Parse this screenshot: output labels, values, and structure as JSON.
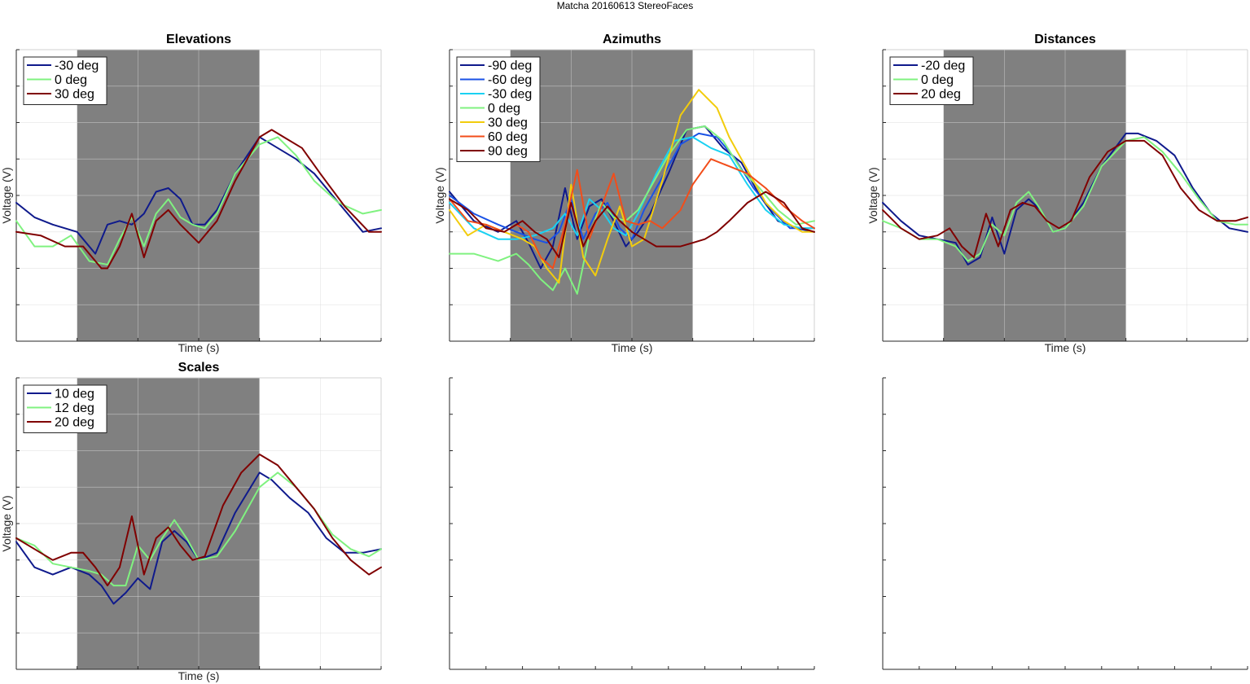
{
  "figure": {
    "title": "Matcha 20160613 StereoFaces"
  },
  "chart_data": [
    {
      "type": "line",
      "title": "Elevations",
      "xlabel": "Time (s)",
      "ylabel": "Voltage (V)",
      "grid": true,
      "legend_position": "top-left",
      "shaded_region": [
        1,
        4
      ],
      "xlim": [
        0,
        6
      ],
      "ylim": [
        0,
        8
      ],
      "series": [
        {
          "name": "-30 deg",
          "color": "#0f1a8c",
          "x": [
            0,
            0.3,
            0.6,
            1.0,
            1.3,
            1.5,
            1.7,
            1.9,
            2.1,
            2.3,
            2.5,
            2.7,
            2.9,
            3.1,
            3.3,
            3.6,
            4.0,
            4.2,
            4.6,
            4.9,
            5.3,
            5.7,
            6.0
          ],
          "y": [
            3.8,
            3.4,
            3.2,
            3.0,
            2.4,
            3.2,
            3.3,
            3.2,
            3.5,
            4.1,
            4.2,
            3.9,
            3.2,
            3.2,
            3.6,
            4.6,
            5.6,
            5.4,
            5.0,
            4.6,
            3.8,
            3.0,
            3.1
          ]
        },
        {
          "name": "0 deg",
          "color": "#80f280",
          "x": [
            0,
            0.3,
            0.6,
            0.9,
            1.2,
            1.5,
            1.7,
            1.9,
            2.1,
            2.3,
            2.5,
            2.7,
            2.9,
            3.1,
            3.3,
            3.6,
            4.0,
            4.3,
            4.6,
            4.9,
            5.3,
            5.7,
            6.0
          ],
          "y": [
            3.3,
            2.6,
            2.6,
            2.9,
            2.2,
            2.1,
            2.8,
            3.4,
            2.6,
            3.5,
            3.9,
            3.4,
            3.2,
            3.1,
            3.5,
            4.6,
            5.4,
            5.6,
            5.1,
            4.4,
            3.8,
            3.5,
            3.6
          ]
        },
        {
          "name": "30 deg",
          "color": "#800000",
          "x": [
            0,
            0.4,
            0.8,
            1.1,
            1.4,
            1.5,
            1.7,
            1.9,
            2.1,
            2.3,
            2.5,
            2.7,
            3.0,
            3.3,
            3.6,
            4.0,
            4.2,
            4.4,
            4.7,
            5.0,
            5.4,
            5.8,
            6.0
          ],
          "y": [
            3.0,
            2.9,
            2.6,
            2.6,
            2.0,
            2.0,
            2.6,
            3.5,
            2.3,
            3.3,
            3.6,
            3.2,
            2.7,
            3.3,
            4.4,
            5.6,
            5.8,
            5.6,
            5.3,
            4.6,
            3.7,
            3.0,
            3.0
          ]
        }
      ]
    },
    {
      "type": "line",
      "title": "Azimuths",
      "xlabel": "Time (s)",
      "ylabel": "Voltage (V)",
      "grid": true,
      "legend_position": "top-left",
      "shaded_region": [
        1,
        4
      ],
      "xlim": [
        0,
        6
      ],
      "ylim": [
        0,
        8
      ],
      "series": [
        {
          "name": "-90 deg",
          "color": "#0f1a8c",
          "x": [
            0,
            0.4,
            0.8,
            1.1,
            1.3,
            1.5,
            1.7,
            1.9,
            2.1,
            2.3,
            2.5,
            2.7,
            2.9,
            3.1,
            3.3,
            3.6,
            3.9,
            4.2,
            4.5,
            4.8,
            5.1,
            5.4,
            5.7,
            6.0
          ],
          "y": [
            4.1,
            3.3,
            3.0,
            3.3,
            2.7,
            2.0,
            2.6,
            4.2,
            2.8,
            3.7,
            3.9,
            3.3,
            2.6,
            3.0,
            3.5,
            4.6,
            5.8,
            5.9,
            5.3,
            4.9,
            4.0,
            3.3,
            3.1,
            3.0
          ]
        },
        {
          "name": "-60 deg",
          "color": "#1a52e6",
          "x": [
            0,
            0.4,
            0.8,
            1.1,
            1.4,
            1.6,
            1.8,
            2.0,
            2.2,
            2.4,
            2.6,
            2.8,
            3.0,
            3.2,
            3.5,
            3.8,
            4.1,
            4.4,
            4.7,
            5.0,
            5.3,
            5.6,
            6.0
          ],
          "y": [
            4.0,
            3.5,
            3.2,
            3.0,
            2.8,
            2.7,
            3.0,
            3.9,
            2.8,
            3.5,
            3.8,
            3.1,
            2.8,
            3.6,
            4.5,
            5.4,
            5.7,
            5.6,
            5.0,
            4.2,
            3.6,
            3.1,
            3.1
          ]
        },
        {
          "name": "-30 deg",
          "color": "#1ad1f2",
          "x": [
            0,
            0.4,
            0.8,
            1.1,
            1.4,
            1.7,
            1.9,
            2.1,
            2.3,
            2.5,
            2.7,
            2.9,
            3.1,
            3.4,
            3.7,
            4.0,
            4.3,
            4.6,
            4.9,
            5.2,
            5.5,
            5.8,
            6.0
          ],
          "y": [
            3.8,
            3.1,
            2.8,
            2.8,
            2.9,
            3.1,
            3.5,
            2.9,
            3.9,
            3.6,
            3.1,
            2.9,
            3.5,
            4.6,
            5.5,
            5.6,
            5.3,
            5.1,
            4.3,
            3.6,
            3.2,
            3.1,
            3.1
          ]
        },
        {
          "name": "0 deg",
          "color": "#80f280",
          "x": [
            0,
            0.4,
            0.8,
            1.1,
            1.3,
            1.5,
            1.7,
            1.9,
            2.1,
            2.3,
            2.5,
            2.7,
            2.9,
            3.1,
            3.3,
            3.6,
            3.9,
            4.2,
            4.5,
            4.8,
            5.1,
            5.4,
            5.7,
            6.0
          ],
          "y": [
            2.4,
            2.4,
            2.2,
            2.4,
            2.1,
            1.7,
            1.4,
            2.0,
            1.3,
            2.9,
            3.8,
            3.4,
            3.3,
            3.6,
            4.2,
            5.1,
            5.8,
            5.9,
            5.5,
            4.7,
            4.2,
            3.6,
            3.2,
            3.3
          ]
        },
        {
          "name": "30 deg",
          "color": "#f2cc0d",
          "x": [
            0,
            0.3,
            0.6,
            0.9,
            1.2,
            1.4,
            1.6,
            1.8,
            2.0,
            2.2,
            2.4,
            2.6,
            2.8,
            3.0,
            3.2,
            3.5,
            3.8,
            4.1,
            4.4,
            4.6,
            4.9,
            5.2,
            5.5,
            5.8,
            6.0
          ],
          "y": [
            3.6,
            2.9,
            3.2,
            3.0,
            2.8,
            2.6,
            2.0,
            1.6,
            4.3,
            2.3,
            1.8,
            2.8,
            3.7,
            2.6,
            2.8,
            4.4,
            6.2,
            6.9,
            6.4,
            5.6,
            4.7,
            3.8,
            3.3,
            3.0,
            3.0
          ]
        },
        {
          "name": "60 deg",
          "color": "#f24d1a",
          "x": [
            0,
            0.3,
            0.6,
            0.9,
            1.1,
            1.3,
            1.5,
            1.7,
            1.9,
            2.1,
            2.3,
            2.5,
            2.7,
            2.9,
            3.1,
            3.3,
            3.5,
            3.8,
            4.0,
            4.3,
            4.6,
            4.9,
            5.2,
            5.5,
            5.8,
            6.0
          ],
          "y": [
            3.9,
            3.3,
            3.2,
            3.0,
            3.2,
            3.0,
            2.3,
            2.0,
            3.2,
            4.7,
            2.8,
            3.7,
            4.6,
            3.3,
            3.2,
            3.3,
            3.1,
            3.6,
            4.3,
            5.0,
            4.8,
            4.6,
            4.2,
            3.7,
            3.3,
            3.1
          ]
        },
        {
          "name": "90 deg",
          "color": "#800000",
          "x": [
            0,
            0.3,
            0.6,
            0.9,
            1.2,
            1.4,
            1.6,
            1.8,
            2.0,
            2.2,
            2.4,
            2.6,
            2.8,
            3.0,
            3.2,
            3.4,
            3.6,
            3.8,
            4.0,
            4.2,
            4.4,
            4.6,
            4.9,
            5.2,
            5.5,
            5.8,
            6.0
          ],
          "y": [
            3.9,
            3.6,
            3.1,
            3.0,
            3.3,
            3.0,
            2.8,
            2.3,
            3.8,
            2.6,
            3.3,
            3.7,
            3.3,
            3.0,
            2.8,
            2.6,
            2.6,
            2.6,
            2.7,
            2.8,
            3.0,
            3.3,
            3.8,
            4.1,
            3.8,
            3.1,
            3.0
          ]
        }
      ]
    },
    {
      "type": "line",
      "title": "Distances",
      "xlabel": "Time (s)",
      "ylabel": "Voltage (V)",
      "grid": true,
      "legend_position": "top-left",
      "shaded_region": [
        1,
        4
      ],
      "xlim": [
        0,
        6
      ],
      "ylim": [
        0,
        8
      ],
      "series": [
        {
          "name": "-20 deg",
          "color": "#0f1a8c",
          "x": [
            0,
            0.3,
            0.6,
            0.9,
            1.2,
            1.4,
            1.6,
            1.8,
            2.0,
            2.2,
            2.4,
            2.6,
            2.8,
            3.0,
            3.3,
            3.6,
            4.0,
            4.2,
            4.5,
            4.8,
            5.1,
            5.4,
            5.7,
            6.0
          ],
          "y": [
            3.8,
            3.3,
            2.9,
            2.8,
            2.7,
            2.1,
            2.3,
            3.4,
            2.4,
            3.6,
            3.9,
            3.6,
            3.0,
            3.1,
            3.8,
            4.8,
            5.7,
            5.7,
            5.5,
            5.1,
            4.2,
            3.5,
            3.1,
            3.0
          ]
        },
        {
          "name": "0 deg",
          "color": "#80f280",
          "x": [
            0,
            0.3,
            0.6,
            0.9,
            1.2,
            1.4,
            1.6,
            1.8,
            2.0,
            2.2,
            2.4,
            2.6,
            2.8,
            3.0,
            3.3,
            3.6,
            4.0,
            4.3,
            4.6,
            4.9,
            5.2,
            5.5,
            5.8,
            6.0
          ],
          "y": [
            3.3,
            3.1,
            2.8,
            2.8,
            2.6,
            2.2,
            2.4,
            3.2,
            2.9,
            3.8,
            4.1,
            3.6,
            3.0,
            3.1,
            3.7,
            4.8,
            5.5,
            5.6,
            5.2,
            4.6,
            3.9,
            3.3,
            3.2,
            3.2
          ]
        },
        {
          "name": "20 deg",
          "color": "#800000",
          "x": [
            0,
            0.3,
            0.6,
            0.9,
            1.1,
            1.3,
            1.5,
            1.7,
            1.9,
            2.1,
            2.3,
            2.5,
            2.7,
            2.9,
            3.1,
            3.4,
            3.7,
            4.0,
            4.3,
            4.6,
            4.9,
            5.2,
            5.5,
            5.8,
            6.0
          ],
          "y": [
            3.6,
            3.1,
            2.8,
            2.9,
            3.1,
            2.6,
            2.3,
            3.5,
            2.6,
            3.6,
            3.8,
            3.7,
            3.3,
            3.1,
            3.3,
            4.5,
            5.2,
            5.5,
            5.5,
            5.1,
            4.2,
            3.6,
            3.3,
            3.3,
            3.4
          ]
        }
      ]
    },
    {
      "type": "line",
      "title": "Scales",
      "xlabel": "Time (s)",
      "ylabel": "Voltage (V)",
      "grid": true,
      "legend_position": "top-left",
      "shaded_region": [
        1,
        4
      ],
      "xlim": [
        0,
        6
      ],
      "ylim": [
        0,
        8
      ],
      "series": [
        {
          "name": "10 deg",
          "color": "#0f1a8c",
          "x": [
            0,
            0.3,
            0.6,
            0.9,
            1.2,
            1.4,
            1.6,
            1.8,
            2.0,
            2.2,
            2.4,
            2.6,
            2.8,
            3.0,
            3.3,
            3.6,
            4.0,
            4.2,
            4.5,
            4.8,
            5.1,
            5.4,
            5.7,
            6.0
          ],
          "y": [
            3.5,
            2.8,
            2.6,
            2.8,
            2.6,
            2.3,
            1.8,
            2.1,
            2.5,
            2.2,
            3.5,
            3.8,
            3.5,
            3.0,
            3.2,
            4.3,
            5.4,
            5.2,
            4.7,
            4.3,
            3.6,
            3.2,
            3.2,
            3.3
          ]
        },
        {
          "name": "12 deg",
          "color": "#80f280",
          "x": [
            0,
            0.3,
            0.6,
            0.9,
            1.2,
            1.4,
            1.6,
            1.8,
            2.0,
            2.2,
            2.4,
            2.6,
            2.8,
            3.0,
            3.3,
            3.6,
            4.0,
            4.3,
            4.6,
            4.9,
            5.2,
            5.5,
            5.8,
            6.0
          ],
          "y": [
            3.6,
            3.4,
            2.9,
            2.8,
            2.7,
            2.6,
            2.3,
            2.3,
            3.4,
            3.0,
            3.6,
            4.1,
            3.6,
            3.0,
            3.1,
            3.8,
            5.0,
            5.4,
            5.0,
            4.4,
            3.7,
            3.3,
            3.1,
            3.3
          ]
        },
        {
          "name": "20 deg",
          "color": "#800000",
          "x": [
            0,
            0.3,
            0.6,
            0.9,
            1.1,
            1.3,
            1.5,
            1.7,
            1.9,
            2.1,
            2.3,
            2.5,
            2.7,
            2.9,
            3.1,
            3.4,
            3.7,
            4.0,
            4.3,
            4.6,
            4.9,
            5.2,
            5.5,
            5.8,
            6.0
          ],
          "y": [
            3.6,
            3.3,
            3.0,
            3.2,
            3.2,
            2.8,
            2.3,
            2.8,
            4.2,
            2.6,
            3.6,
            3.9,
            3.4,
            3.0,
            3.1,
            4.5,
            5.4,
            5.9,
            5.6,
            5.0,
            4.4,
            3.6,
            3.0,
            2.6,
            2.8
          ]
        }
      ]
    },
    {
      "type": "line",
      "title": "",
      "xlabel": "",
      "ylabel": "",
      "grid": false,
      "xlim": [
        0,
        6
      ],
      "ylim": [
        0,
        8
      ],
      "series": []
    },
    {
      "type": "line",
      "title": "",
      "xlabel": "",
      "ylabel": "",
      "grid": false,
      "xlim": [
        0,
        6
      ],
      "ylim": [
        0,
        8
      ],
      "series": []
    }
  ]
}
